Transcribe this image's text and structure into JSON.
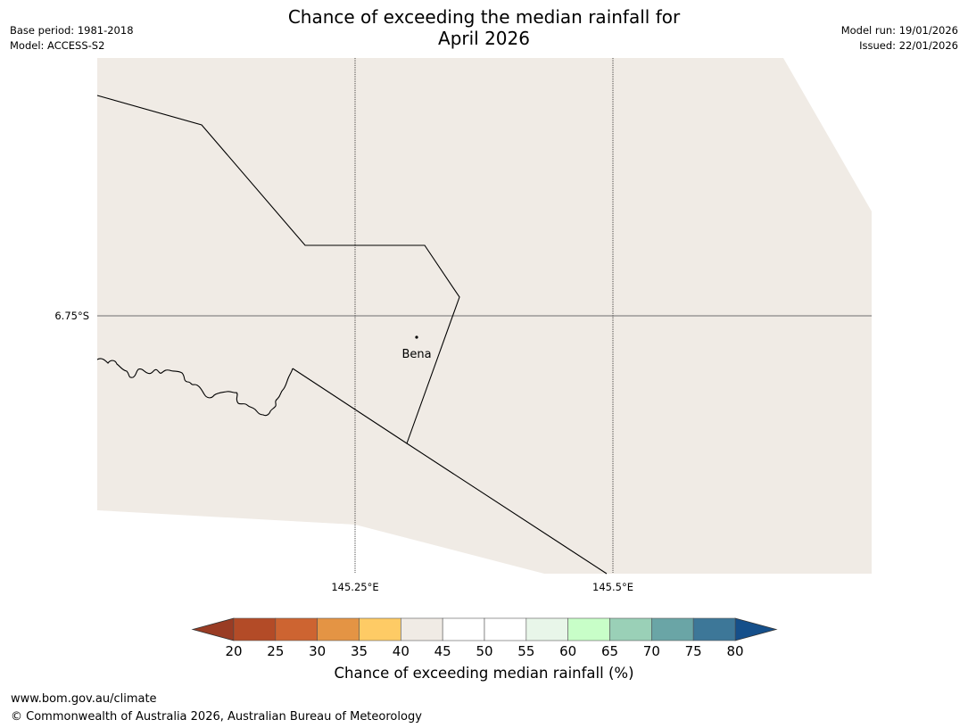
{
  "header": {
    "title_line1": "Chance of exceeding the median rainfall for",
    "title_line2": "April 2026",
    "base_period": "Base period: 1981-2018",
    "model": "Model: ACCESS-S2",
    "model_run": "Model run: 19/01/2026",
    "issued": "Issued: 22/01/2026"
  },
  "map": {
    "land_color": "#f0ebe5",
    "gridlines": {
      "lat_label": "6.75°S",
      "lon_labels": [
        "145.25°E",
        "145.5°E"
      ]
    },
    "places": [
      {
        "name": "Bena"
      }
    ]
  },
  "colorbar": {
    "title": "Chance of exceeding median rainfall (%)",
    "ticks": [
      "20",
      "25",
      "30",
      "35",
      "40",
      "45",
      "50",
      "55",
      "60",
      "65",
      "70",
      "75",
      "80"
    ],
    "under_color": "#993c24",
    "over_color": "#154f8a",
    "bins": [
      {
        "from": 20,
        "to": 25,
        "color": "#b34b27"
      },
      {
        "from": 25,
        "to": 30,
        "color": "#cd6431"
      },
      {
        "from": 30,
        "to": 35,
        "color": "#e49444"
      },
      {
        "from": 35,
        "to": 40,
        "color": "#fecb65"
      },
      {
        "from": 40,
        "to": 45,
        "color": "#f0ebe5"
      },
      {
        "from": 45,
        "to": 50,
        "color": "#ffffff"
      },
      {
        "from": 50,
        "to": 55,
        "color": "#ffffff"
      },
      {
        "from": 55,
        "to": 60,
        "color": "#e8f6e9"
      },
      {
        "from": 60,
        "to": 65,
        "color": "#c8fec8"
      },
      {
        "from": 65,
        "to": 70,
        "color": "#9ad0b7"
      },
      {
        "from": 70,
        "to": 75,
        "color": "#6aa5a6"
      },
      {
        "from": 75,
        "to": 80,
        "color": "#3d7798"
      }
    ]
  },
  "footer": {
    "website": "www.bom.gov.au/climate",
    "copyright": "© Commonwealth of Australia 2026, Australian Bureau of Meteorology"
  }
}
